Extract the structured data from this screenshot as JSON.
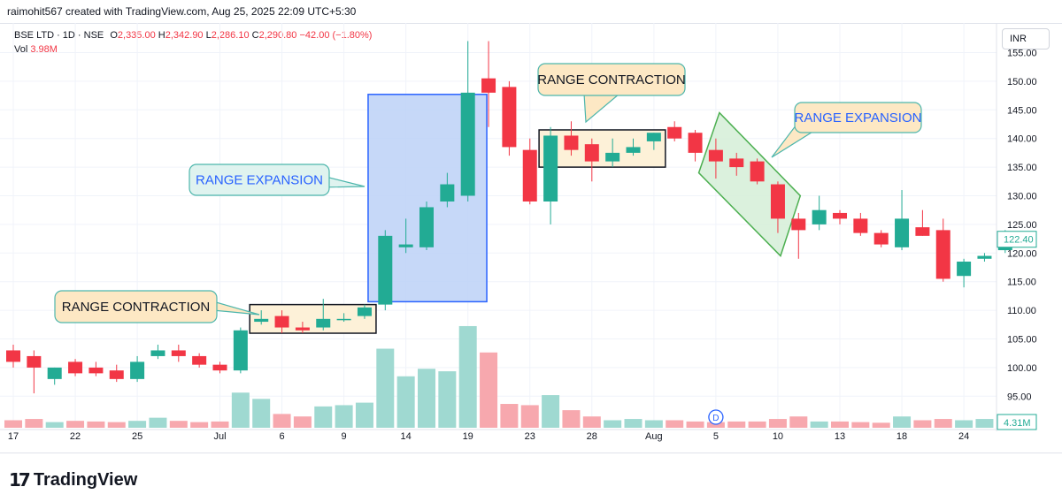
{
  "header": {
    "credit": "raimohit567 created with TradingView.com, Aug 25, 2025 22:09 UTC+5:30"
  },
  "legend": {
    "symbol": "BSE LTD · 1D · NSE",
    "o_label": "O",
    "o_value": "2,335.00",
    "h_label": "H",
    "h_value": "2,342.90",
    "l_label": "L",
    "l_value": "2,286.10",
    "c_label": "C",
    "c_value": "2,290.80",
    "change": "−42.00 (−1.80%)",
    "vol_label": "Vol",
    "vol_value": "3.98M"
  },
  "currency": "INR",
  "brand": {
    "logo": "17",
    "name": "TradingView"
  },
  "colors": {
    "up": "#22ab94",
    "down": "#f23645",
    "vol_up": "#9fd9d1",
    "vol_down": "#f7a8ae",
    "contraction_box": "#fdf1d8",
    "expansion_blue": "#bcd1f7",
    "expansion_green": "#d5efd7"
  },
  "chart_data": {
    "type": "candlestick",
    "y_axis": {
      "min": 91,
      "max": 157,
      "ticks": [
        155,
        150,
        145,
        140,
        135,
        130,
        125,
        120,
        115,
        110,
        105,
        100,
        95
      ],
      "labels": [
        "155.00",
        "150.00",
        "145.00",
        "140.00",
        "135.00",
        "130.00",
        "125.00",
        "120.00",
        "115.00",
        "110.00",
        "105.00",
        "100.00",
        "95.00"
      ]
    },
    "x_axis": {
      "labels": [
        "17",
        "22",
        "25",
        "Jul",
        "6",
        "9",
        "14",
        "19",
        "23",
        "28",
        "Aug",
        "5",
        "10",
        "13",
        "18",
        "24"
      ],
      "label_index": [
        0,
        3,
        6,
        10,
        13,
        16,
        19,
        22,
        25,
        28,
        31,
        34,
        37,
        40,
        43,
        46
      ]
    },
    "last_price": "122.40",
    "last_volume": "4.31M",
    "dividend_marker": "D",
    "candles": [
      {
        "o": 103,
        "h": 104,
        "l": 100,
        "c": 101
      },
      {
        "o": 102,
        "h": 103,
        "l": 95.5,
        "c": 100
      },
      {
        "o": 98,
        "h": 100,
        "l": 97,
        "c": 100
      },
      {
        "o": 101,
        "h": 101.5,
        "l": 98.5,
        "c": 99
      },
      {
        "o": 100,
        "h": 101,
        "l": 98.5,
        "c": 99
      },
      {
        "o": 99.5,
        "h": 100.5,
        "l": 97.5,
        "c": 98
      },
      {
        "o": 98,
        "h": 102,
        "l": 97.5,
        "c": 101
      },
      {
        "o": 102,
        "h": 104,
        "l": 101.5,
        "c": 103
      },
      {
        "o": 103,
        "h": 104,
        "l": 101,
        "c": 102
      },
      {
        "o": 102,
        "h": 102.5,
        "l": 100,
        "c": 100.5
      },
      {
        "o": 100.5,
        "h": 101,
        "l": 99,
        "c": 99.5
      },
      {
        "o": 99.5,
        "h": 107,
        "l": 99,
        "c": 106.5
      },
      {
        "o": 108,
        "h": 110,
        "l": 107.5,
        "c": 108.5
      },
      {
        "o": 109,
        "h": 110,
        "l": 106,
        "c": 107
      },
      {
        "o": 107,
        "h": 108,
        "l": 106,
        "c": 106.5
      },
      {
        "o": 107,
        "h": 112,
        "l": 106.5,
        "c": 108.5
      },
      {
        "o": 108.5,
        "h": 109.5,
        "l": 108,
        "c": 108.5
      },
      {
        "o": 109,
        "h": 111,
        "l": 108.5,
        "c": 110.5
      },
      {
        "o": 111,
        "h": 124,
        "l": 110,
        "c": 123
      },
      {
        "o": 121,
        "h": 126,
        "l": 120,
        "c": 121.5
      },
      {
        "o": 121,
        "h": 129,
        "l": 120.5,
        "c": 128
      },
      {
        "o": 129,
        "h": 134,
        "l": 128,
        "c": 132
      },
      {
        "o": 130,
        "h": 157,
        "l": 129,
        "c": 148
      },
      {
        "o": 150.5,
        "h": 157,
        "l": 142,
        "c": 148
      },
      {
        "o": 149,
        "h": 150,
        "l": 137,
        "c": 138.5
      },
      {
        "o": 138,
        "h": 140,
        "l": 128.5,
        "c": 129
      },
      {
        "o": 129,
        "h": 142,
        "l": 125,
        "c": 140.5
      },
      {
        "o": 140.5,
        "h": 143,
        "l": 137,
        "c": 138
      },
      {
        "o": 139,
        "h": 140,
        "l": 132.5,
        "c": 136
      },
      {
        "o": 136,
        "h": 140,
        "l": 135,
        "c": 137.5
      },
      {
        "o": 137.5,
        "h": 140,
        "l": 137,
        "c": 138.5
      },
      {
        "o": 139.5,
        "h": 141,
        "l": 138,
        "c": 141
      },
      {
        "o": 142,
        "h": 143,
        "l": 139.5,
        "c": 140
      },
      {
        "o": 141,
        "h": 141.5,
        "l": 136,
        "c": 137.5
      },
      {
        "o": 138,
        "h": 140,
        "l": 133,
        "c": 136
      },
      {
        "o": 136.5,
        "h": 137.5,
        "l": 133.5,
        "c": 135
      },
      {
        "o": 136,
        "h": 136.5,
        "l": 132,
        "c": 132.5
      },
      {
        "o": 132,
        "h": 132.5,
        "l": 123.5,
        "c": 126
      },
      {
        "o": 126,
        "h": 127,
        "l": 119,
        "c": 124
      },
      {
        "o": 125,
        "h": 130,
        "l": 124,
        "c": 127.5
      },
      {
        "o": 127,
        "h": 127.5,
        "l": 125,
        "c": 126
      },
      {
        "o": 126,
        "h": 127,
        "l": 123,
        "c": 123.5
      },
      {
        "o": 123.5,
        "h": 124,
        "l": 121,
        "c": 121.5
      },
      {
        "o": 121,
        "h": 131,
        "l": 120.5,
        "c": 126
      },
      {
        "o": 124.5,
        "h": 127.5,
        "l": 123,
        "c": 123
      },
      {
        "o": 124,
        "h": 126,
        "l": 115,
        "c": 115.5
      },
      {
        "o": 116,
        "h": 119,
        "l": 114,
        "c": 118.5
      },
      {
        "o": 119,
        "h": 120,
        "l": 118.5,
        "c": 119.5
      },
      {
        "o": 120.5,
        "h": 124,
        "l": 120,
        "c": 122.4
      }
    ],
    "volumes": [
      0.6,
      0.7,
      0.45,
      0.55,
      0.5,
      0.45,
      0.55,
      0.8,
      0.55,
      0.45,
      0.5,
      2.8,
      2.3,
      1.1,
      0.9,
      1.7,
      1.8,
      2.0,
      6.3,
      4.1,
      4.7,
      4.5,
      8.1,
      6.0,
      1.9,
      1.8,
      2.6,
      1.4,
      0.9,
      0.6,
      0.7,
      0.6,
      0.6,
      0.5,
      0.45,
      0.5,
      0.5,
      0.7,
      0.9,
      0.5,
      0.5,
      0.45,
      0.4,
      0.9,
      0.6,
      0.7,
      0.6,
      0.7,
      0.9
    ],
    "annotations": [
      {
        "text": "RANGE CONTRACTION",
        "id": "callout-1"
      },
      {
        "text": "RANGE EXPANSION",
        "id": "callout-2"
      },
      {
        "text": "RANGE CONTRACTION",
        "id": "callout-3"
      },
      {
        "text": "RANGE EXPANSION",
        "id": "callout-4"
      }
    ]
  }
}
